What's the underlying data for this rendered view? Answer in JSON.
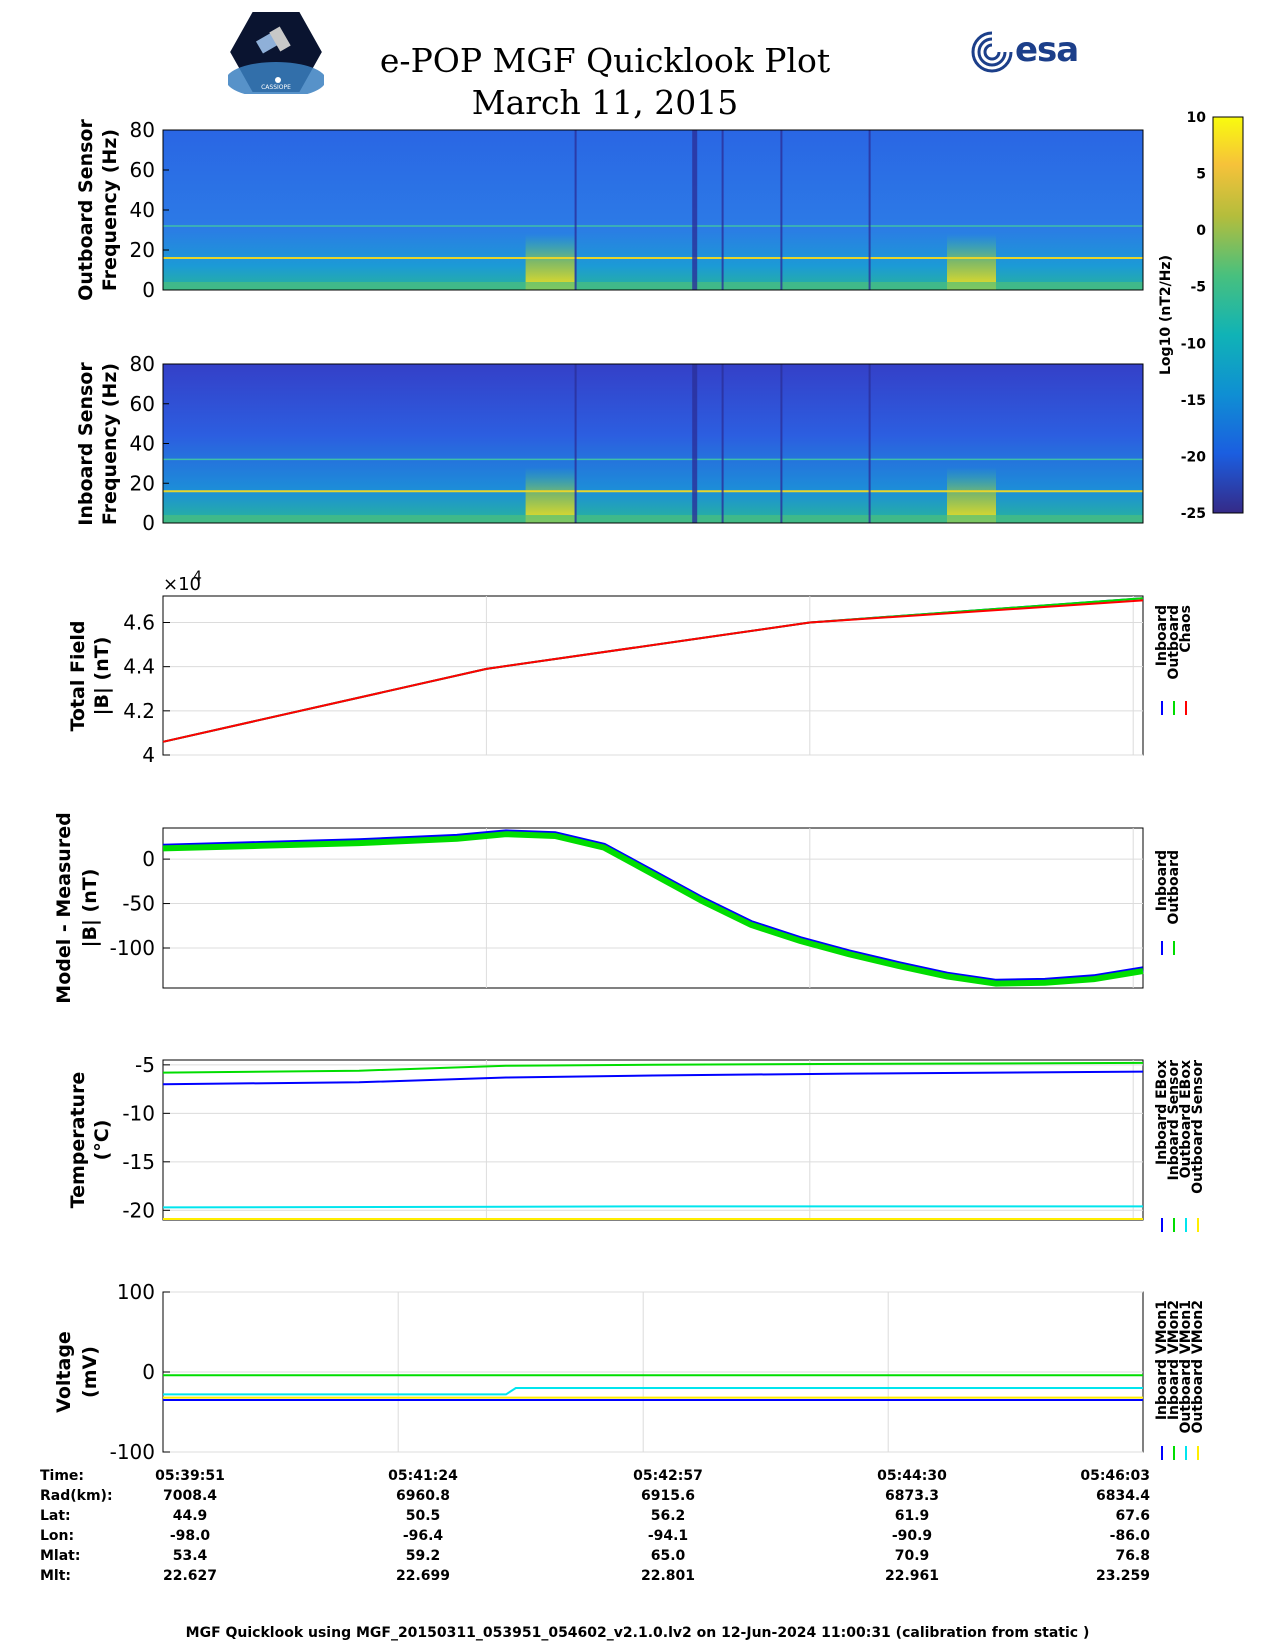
{
  "header": {
    "title_line1": "e-POP MGF Quicklook Plot",
    "title_line2": "March 11, 2015",
    "logo_right_text": "esa",
    "logo_left_caption": "CASSIOPE"
  },
  "colorbar": {
    "label": "Log10 (nT2/Hz)",
    "ticks": [
      "10",
      "5",
      "0",
      "-5",
      "-10",
      "-15",
      "-20",
      "-25"
    ],
    "range": [
      -25,
      10
    ]
  },
  "chart_data": [
    {
      "type": "heatmap",
      "id": "outboard-spectrogram",
      "ylabel_line1": "Outboard Sensor",
      "ylabel_line2": "Frequency (Hz)",
      "ylim": [
        0,
        80
      ],
      "yticks": [
        "80",
        "60",
        "40",
        "20",
        "0"
      ],
      "lines_hz": [
        16,
        32
      ],
      "bright_intervals": [
        [
          0.37,
          0.42
        ],
        [
          0.8,
          0.85
        ]
      ]
    },
    {
      "type": "heatmap",
      "id": "inboard-spectrogram",
      "ylabel_line1": "Inboard Sensor",
      "ylabel_line2": "Frequency (Hz)",
      "ylim": [
        0,
        80
      ],
      "yticks": [
        "80",
        "60",
        "40",
        "20",
        "0"
      ],
      "lines_hz": [
        16,
        32
      ],
      "bright_intervals": [
        [
          0.37,
          0.42
        ],
        [
          0.8,
          0.85
        ]
      ]
    },
    {
      "type": "line",
      "id": "total-field",
      "ylabel_line1": "Total Field",
      "ylabel_line2": "|B| (nT)",
      "exponent_base": "×10",
      "exponent_power": "4",
      "ylim": [
        4.0,
        4.72
      ],
      "yticks": [
        "4",
        "4.2",
        "4.4",
        "4.6"
      ],
      "ytick_values": [
        4.0,
        4.2,
        4.4,
        4.6
      ],
      "series": [
        {
          "name": "Inboard",
          "color": "#0000ff",
          "x": [
            0,
            0.33,
            0.66,
            1.0
          ],
          "values": [
            4.06,
            4.39,
            4.6,
            4.71
          ]
        },
        {
          "name": "Outboard",
          "color": "#00dd00",
          "x": [
            0,
            0.33,
            0.66,
            1.0
          ],
          "values": [
            4.06,
            4.39,
            4.6,
            4.71
          ]
        },
        {
          "name": "Chaos",
          "color": "#ff0000",
          "x": [
            0,
            0.33,
            0.66,
            1.0
          ],
          "values": [
            4.06,
            4.39,
            4.6,
            4.7
          ]
        }
      ]
    },
    {
      "type": "line",
      "id": "model-minus-measured",
      "ylabel_line1": "Model - Measured",
      "ylabel_line2": "|B| (nT)",
      "ylim": [
        -145,
        35
      ],
      "yticks": [
        "0",
        "-50",
        "-100"
      ],
      "ytick_values": [
        0,
        -50,
        -100
      ],
      "series": [
        {
          "name": "Inboard",
          "color": "#0000ff",
          "x": [
            0,
            0.1,
            0.2,
            0.3,
            0.35,
            0.4,
            0.45,
            0.5,
            0.55,
            0.6,
            0.65,
            0.7,
            0.75,
            0.8,
            0.85,
            0.9,
            0.95,
            1.0
          ],
          "values": [
            14,
            17,
            20,
            25,
            30,
            28,
            15,
            -15,
            -45,
            -72,
            -90,
            -105,
            -118,
            -130,
            -138,
            -137,
            -133,
            -124
          ]
        },
        {
          "name": "Outboard",
          "color": "#00dd00",
          "x": [
            0,
            0.1,
            0.2,
            0.3,
            0.35,
            0.4,
            0.45,
            0.5,
            0.55,
            0.6,
            0.65,
            0.7,
            0.75,
            0.8,
            0.85,
            0.9,
            0.95,
            1.0
          ],
          "values": [
            12,
            15,
            18,
            23,
            28,
            26,
            13,
            -17,
            -47,
            -74,
            -92,
            -107,
            -120,
            -132,
            -140,
            -139,
            -135,
            -126
          ]
        }
      ]
    },
    {
      "type": "line",
      "id": "temperature",
      "ylabel_line1": "Temperature",
      "ylabel_line2": "(°C)",
      "ylim": [
        -21,
        -4.5
      ],
      "yticks": [
        "-5",
        "-10",
        "-15",
        "-20"
      ],
      "ytick_values": [
        -5,
        -10,
        -15,
        -20
      ],
      "series": [
        {
          "name": "Inboard EBox",
          "color": "#0000ff",
          "x": [
            0,
            0.2,
            0.35,
            0.5,
            0.7,
            1.0
          ],
          "values": [
            -7.0,
            -6.8,
            -6.3,
            -6.1,
            -5.9,
            -5.7
          ]
        },
        {
          "name": "Inboard Sensor",
          "color": "#00dd00",
          "x": [
            0,
            0.2,
            0.35,
            0.5,
            0.7,
            1.0
          ],
          "values": [
            -5.8,
            -5.6,
            -5.1,
            -5.0,
            -4.9,
            -4.8
          ]
        },
        {
          "name": "Outboard EBox",
          "color": "#00e5ee",
          "x": [
            0,
            0.5,
            1.0
          ],
          "values": [
            -19.7,
            -19.6,
            -19.6
          ]
        },
        {
          "name": "Outboard Sensor",
          "color": "#ffee00",
          "x": [
            0,
            0.5,
            1.0
          ],
          "values": [
            -20.9,
            -20.9,
            -20.9
          ]
        }
      ]
    },
    {
      "type": "line",
      "id": "voltage",
      "ylabel_line1": "Voltage",
      "ylabel_line2": "(mV)",
      "ylim": [
        -100,
        100
      ],
      "yticks": [
        "100",
        "0",
        "-100"
      ],
      "ytick_values": [
        100,
        0,
        -100
      ],
      "series": [
        {
          "name": "Inboard VMon1",
          "color": "#0000ff",
          "x": [
            0,
            1.0
          ],
          "values": [
            -35,
            -35
          ]
        },
        {
          "name": "Inboard VMon2",
          "color": "#00dd00",
          "x": [
            0,
            0.5,
            1.0
          ],
          "values": [
            -4,
            -4,
            -4
          ]
        },
        {
          "name": "Outboard VMon1",
          "color": "#00e5ee",
          "x": [
            0,
            0.35,
            0.36,
            1.0
          ],
          "values": [
            -28,
            -28,
            -20,
            -20
          ]
        },
        {
          "name": "Outboard VMon2",
          "color": "#ffee00",
          "x": [
            0,
            1.0
          ],
          "values": [
            -32,
            -32
          ]
        }
      ]
    }
  ],
  "ephemeris": {
    "row_labels": [
      "Time:",
      "Rad(km):",
      "Lat:",
      "Lon:",
      "Mlat:",
      "Mlt:"
    ],
    "columns": [
      [
        "05:39:51",
        "7008.4",
        "44.9",
        "-98.0",
        "53.4",
        "22.627"
      ],
      [
        "05:41:24",
        "6960.8",
        "50.5",
        "-96.4",
        "59.2",
        "22.699"
      ],
      [
        "05:42:57",
        "6915.6",
        "56.2",
        "-94.1",
        "65.0",
        "22.801"
      ],
      [
        "05:44:30",
        "6873.3",
        "61.9",
        "-90.9",
        "70.9",
        "22.961"
      ],
      [
        "05:46:03",
        "6834.4",
        "67.6",
        "-86.0",
        "76.8",
        "23.259"
      ]
    ]
  },
  "footer": "MGF Quicklook using MGF_20150311_053951_054602_v2.1.0.lv2 on 12-Jun-2024 11:00:31 (calibration from static )"
}
